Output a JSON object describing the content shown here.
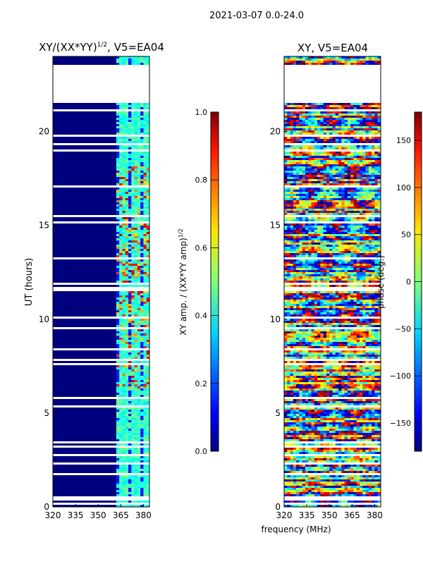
{
  "figure": {
    "suptitle": "2021-03-07 0.0-24.0",
    "common_xlabel": "frequency (MHz)"
  },
  "chart_data": [
    {
      "type": "heatmap",
      "title_main": "XY/(XX*YY)",
      "title_sup": "1/2",
      "title_tail": ", V5=EA04",
      "ylabel": "UT (hours)",
      "xlim": [
        320,
        384
      ],
      "ylim": [
        0,
        24
      ],
      "xticks": [
        "320",
        "335",
        "350",
        "365",
        "380"
      ],
      "xtick_values": [
        320,
        335,
        350,
        365,
        380
      ],
      "yticks": [
        "0",
        "5",
        "10",
        "15",
        "20"
      ],
      "ytick_values": [
        0,
        5,
        10,
        15,
        20
      ],
      "colorbar": {
        "label_main": "XY amp. / (XX*YY amp)",
        "label_sup": "1/2",
        "vmin": 0.0,
        "vmax": 1.0,
        "ticks": [
          "0.0",
          "0.2",
          "0.4",
          "0.6",
          "0.8",
          "1.0"
        ],
        "tick_values": [
          0.0,
          0.2,
          0.4,
          0.6,
          0.8,
          1.0
        ]
      }
    },
    {
      "type": "heatmap",
      "title": "XY, V5=EA04",
      "ylabel": "",
      "xlim": [
        320,
        384
      ],
      "ylim": [
        0,
        24
      ],
      "xticks": [
        "320",
        "335",
        "350",
        "365",
        "380"
      ],
      "xtick_values": [
        320,
        335,
        350,
        365,
        380
      ],
      "yticks": [
        "0",
        "5",
        "10",
        "15",
        "20"
      ],
      "ytick_values": [
        0,
        5,
        10,
        15,
        20
      ],
      "colorbar": {
        "label": "phase (deg.)",
        "vmin": -180,
        "vmax": 180,
        "ticks": [
          "−150",
          "−100",
          "−50",
          "0",
          "50",
          "100",
          "150"
        ],
        "tick_values": [
          -150,
          -100,
          -50,
          0,
          50,
          100,
          150
        ]
      }
    }
  ]
}
